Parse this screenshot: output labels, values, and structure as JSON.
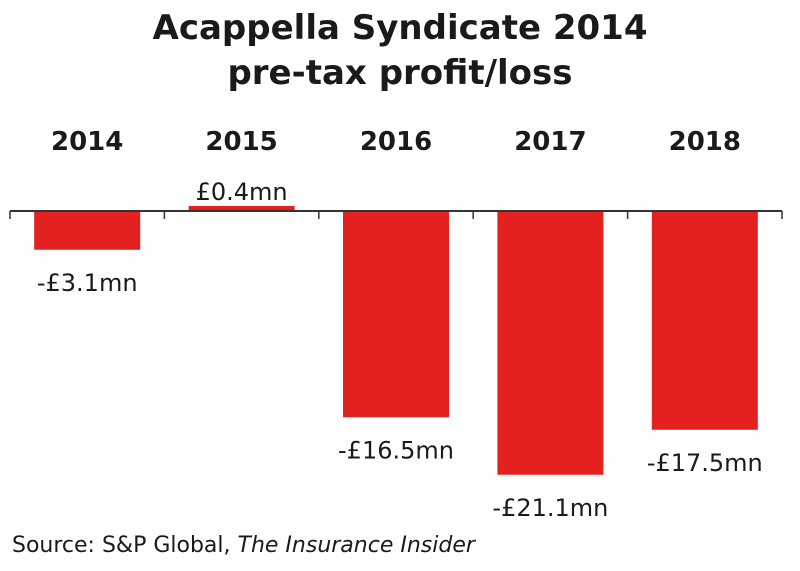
{
  "chart_data": {
    "type": "bar",
    "title_lines": [
      "Acappella Syndicate 2014",
      "pre-tax profit/loss"
    ],
    "categories": [
      "2014",
      "2015",
      "2016",
      "2017",
      "2018"
    ],
    "values": [
      -3.1,
      0.4,
      -16.5,
      -21.1,
      -17.5
    ],
    "data_labels": [
      "-£3.1mn",
      "£0.4mn",
      "-£16.5mn",
      "-£21.1mn",
      "-£17.5mn"
    ],
    "unit": "£mn",
    "ylim": [
      -22,
      1
    ],
    "grid": false,
    "legend": "none",
    "bar_color": "#e3211e"
  },
  "source": {
    "prefix": "Source: S&P Global, ",
    "publication": "The Insurance Insider"
  }
}
